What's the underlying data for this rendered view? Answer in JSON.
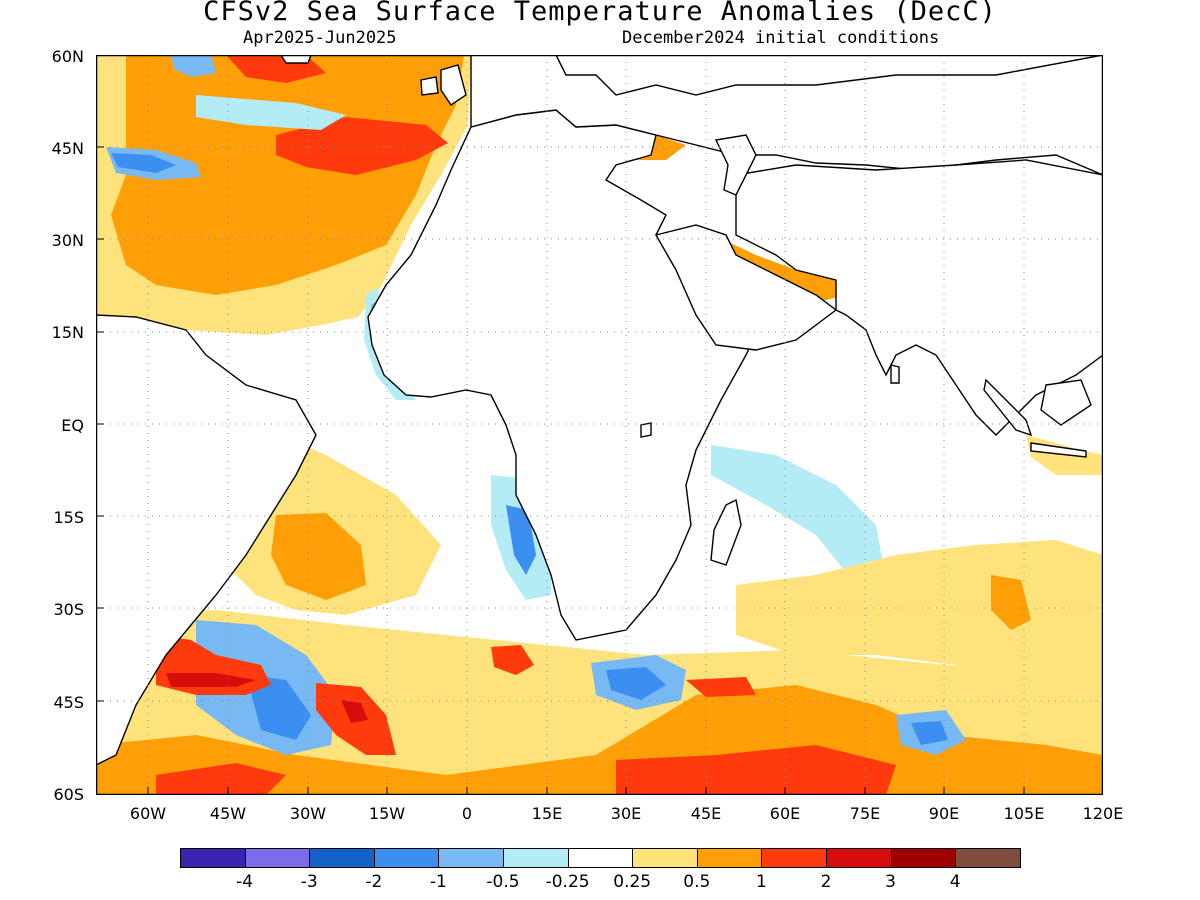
{
  "title": "CFSv2 Sea Surface Temperature Anomalies (DecC)",
  "subtitle_left": "Apr2025-Jun2025",
  "subtitle_right": "December2024 initial conditions",
  "y_ticks": [
    "60N",
    "45N",
    "30N",
    "15N",
    "EQ",
    "15S",
    "30S",
    "45S",
    "60S"
  ],
  "x_ticks": [
    "60W",
    "45W",
    "30W",
    "15W",
    "0",
    "15E",
    "30E",
    "45E",
    "60E",
    "75E",
    "90E",
    "105E",
    "120E"
  ],
  "colorbar": {
    "colors": [
      "#3a23b0",
      "#7c6ce8",
      "#1461c8",
      "#3a8ff0",
      "#78b9f4",
      "#b4ecf6",
      "#ffffff",
      "#fee27c",
      "#ff9f07",
      "#ff3a0c",
      "#d70d0d",
      "#a00000",
      "#7d4c3c"
    ],
    "labels": [
      "-4",
      "-3",
      "-2",
      "-1",
      "-0.5",
      "-0.25",
      "0.25",
      "0.5",
      "1",
      "2",
      "3",
      "4"
    ]
  },
  "colors": {
    "neg_light": "#b4ecf6",
    "neg_mid": "#78b9f4",
    "neg_strong": "#3a8ff0",
    "neg_deep": "#1461c8",
    "pos_light": "#fee27c",
    "pos_mid": "#ff9f07",
    "pos_strong": "#ff3a0c",
    "pos_deep": "#d70d0d",
    "pos_max": "#a00000"
  }
}
